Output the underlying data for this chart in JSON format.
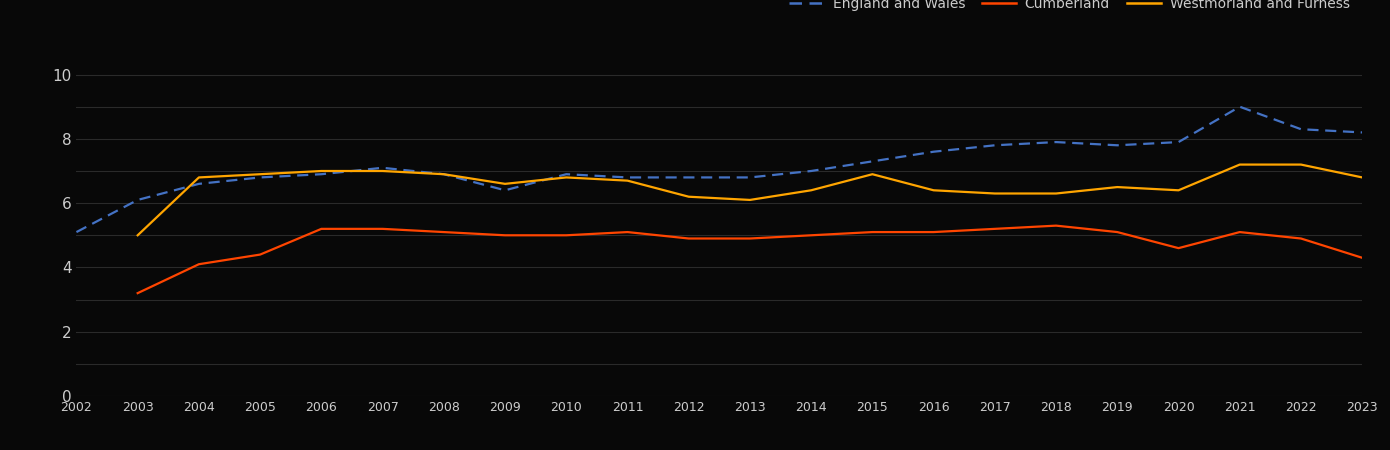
{
  "years": [
    2002,
    2003,
    2004,
    2005,
    2006,
    2007,
    2008,
    2009,
    2010,
    2011,
    2012,
    2013,
    2014,
    2015,
    2016,
    2017,
    2018,
    2019,
    2020,
    2021,
    2022,
    2023
  ],
  "england_wales": [
    5.1,
    6.1,
    6.6,
    6.8,
    6.9,
    7.1,
    6.9,
    6.4,
    6.9,
    6.8,
    6.8,
    6.8,
    7.0,
    7.3,
    7.6,
    7.8,
    7.9,
    7.8,
    7.9,
    9.0,
    8.3,
    8.2
  ],
  "cumberland": [
    null,
    3.2,
    4.1,
    4.4,
    5.2,
    5.2,
    5.1,
    5.0,
    5.0,
    5.1,
    4.9,
    4.9,
    5.0,
    5.1,
    5.1,
    5.2,
    5.3,
    5.1,
    4.6,
    5.1,
    4.9,
    4.3
  ],
  "westmorland": [
    null,
    5.0,
    6.8,
    6.9,
    7.0,
    7.0,
    6.9,
    6.6,
    6.8,
    6.7,
    6.2,
    6.1,
    6.4,
    6.9,
    6.4,
    6.3,
    6.3,
    6.5,
    6.4,
    7.2,
    7.2,
    6.8
  ],
  "england_wales_color": "#4472C4",
  "cumberland_color": "#FF4500",
  "westmorland_color": "#FFA500",
  "background_color": "#080808",
  "text_color": "#cccccc",
  "grid_color": "#2a2a2a",
  "ylim": [
    0,
    10.5
  ],
  "yticks_labeled": [
    0,
    2,
    4,
    6,
    8,
    10
  ],
  "yticks_all": [
    0,
    1,
    2,
    3,
    4,
    5,
    6,
    7,
    8,
    9,
    10
  ],
  "legend_labels": [
    "England and Wales",
    "Cumberland",
    "Westmorland and Furness"
  ],
  "figsize": [
    13.9,
    4.5
  ],
  "dpi": 100
}
